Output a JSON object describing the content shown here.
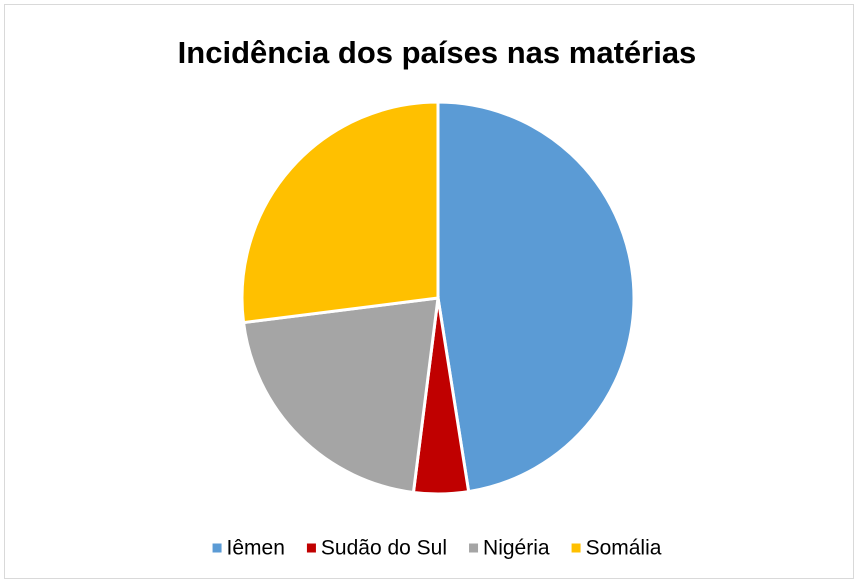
{
  "chart_data": {
    "type": "pie",
    "title": "Incidência dos países nas matérias",
    "categories": [
      "Iêmen",
      "Sudão do Sul",
      "Nigéria",
      "Somália"
    ],
    "values": [
      47.5,
      4.5,
      21,
      27
    ],
    "colors": [
      "#5b9bd5",
      "#c00000",
      "#a5a5a5",
      "#ffc000"
    ],
    "legend": "bottom"
  }
}
